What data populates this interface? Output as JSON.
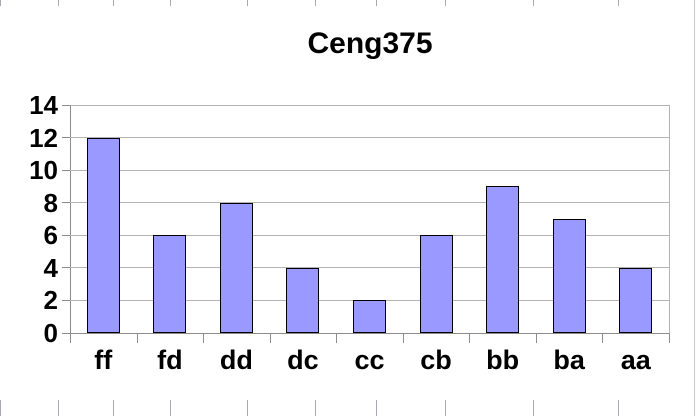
{
  "chart_data": {
    "type": "bar",
    "title": "Ceng375",
    "categories": [
      "ff",
      "fd",
      "dd",
      "dc",
      "cc",
      "cb",
      "bb",
      "ba",
      "aa"
    ],
    "values": [
      12,
      6,
      8,
      4,
      2,
      6,
      9,
      7,
      4
    ],
    "xlabel": "",
    "ylabel": "",
    "ylim": [
      0,
      14
    ],
    "yticks": [
      0,
      2,
      4,
      6,
      8,
      10,
      12,
      14
    ],
    "grid": true,
    "legend": "none",
    "bar_fill_color": "#9999ff",
    "bar_border_color": "#000000",
    "gridline_color": "#b3b3b3",
    "axis_color": "#8c8c8c",
    "title_color": "#000000",
    "label_color": "#000000"
  },
  "background": {
    "color": "#ffffff",
    "spreadsheet_cell_border_color": "#a8aab2",
    "spreadsheet_cell_border_x_positions": [
      0,
      58,
      113,
      170,
      247,
      315,
      376,
      445,
      533,
      618
    ],
    "right_edge_line_x": 694
  }
}
